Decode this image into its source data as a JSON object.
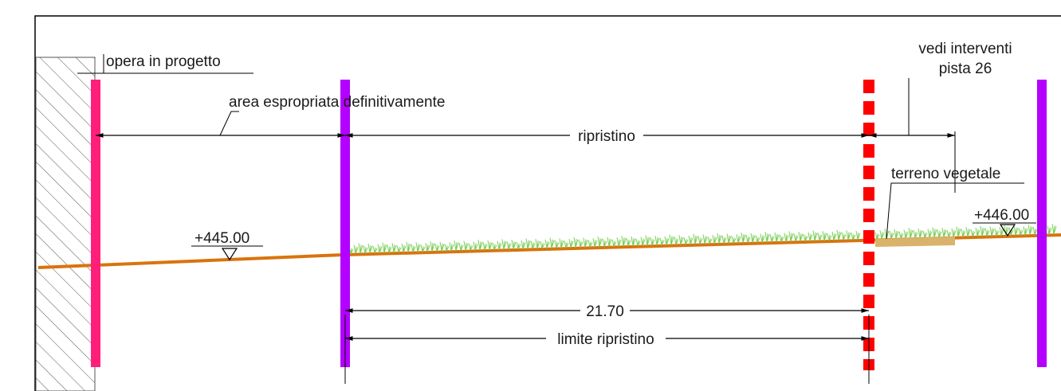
{
  "labels": {
    "opera": "opera in progetto",
    "area": "area espropriata definitivamente",
    "ripristino": "ripristino",
    "vedi_line1": "vedi interventi",
    "vedi_line2": "pista 26",
    "terreno": "terreno vegetale",
    "elev_left": "+445.00",
    "elev_right": "+446.00",
    "dimension": "21.70",
    "limite": "limite ripristino"
  },
  "colors": {
    "structure_line": "#ff1f7a",
    "expropriation_line": "#b400ff",
    "restoration_limit_line": "#ff0000",
    "ground_line": "#d9730d",
    "grass": "#7ccf5a",
    "topsoil": "#d9b36b",
    "hatch": "#555555",
    "drawing_lines": "#000000"
  },
  "icons": {
    "elevation_marker": "triangle-down-icon",
    "dimension_arrow": "arrowhead-icon"
  }
}
